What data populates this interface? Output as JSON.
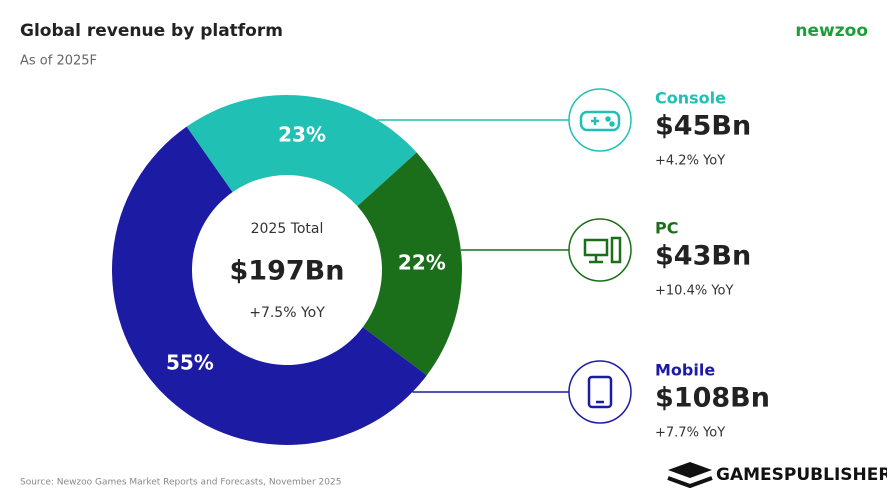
{
  "chart_data": {
    "type": "donut",
    "title": "Global revenue by platform",
    "subtitle": "As of 2025F",
    "brand": "newzoo",
    "center_label": "2025 Total",
    "center_value": "$197Bn",
    "center_change": "+7.5% YoY",
    "categories": [
      "Console",
      "PC",
      "Mobile"
    ],
    "values": [
      23,
      22,
      55
    ],
    "value_labels": [
      "23%",
      "22%",
      "55%"
    ],
    "colors": [
      "#20c0b4",
      "#1b6f1b",
      "#1b1ba3"
    ],
    "amounts": [
      "$45Bn",
      "$43Bn",
      "$108Bn"
    ],
    "changes": [
      "+4.2% YoY",
      "+10.4% YoY",
      "+7.7% YoY"
    ],
    "source": "Source: Newzoo Games Market Reports and Forecasts, November 2025",
    "watermark": "GAMESPUBLISHER.COM"
  }
}
